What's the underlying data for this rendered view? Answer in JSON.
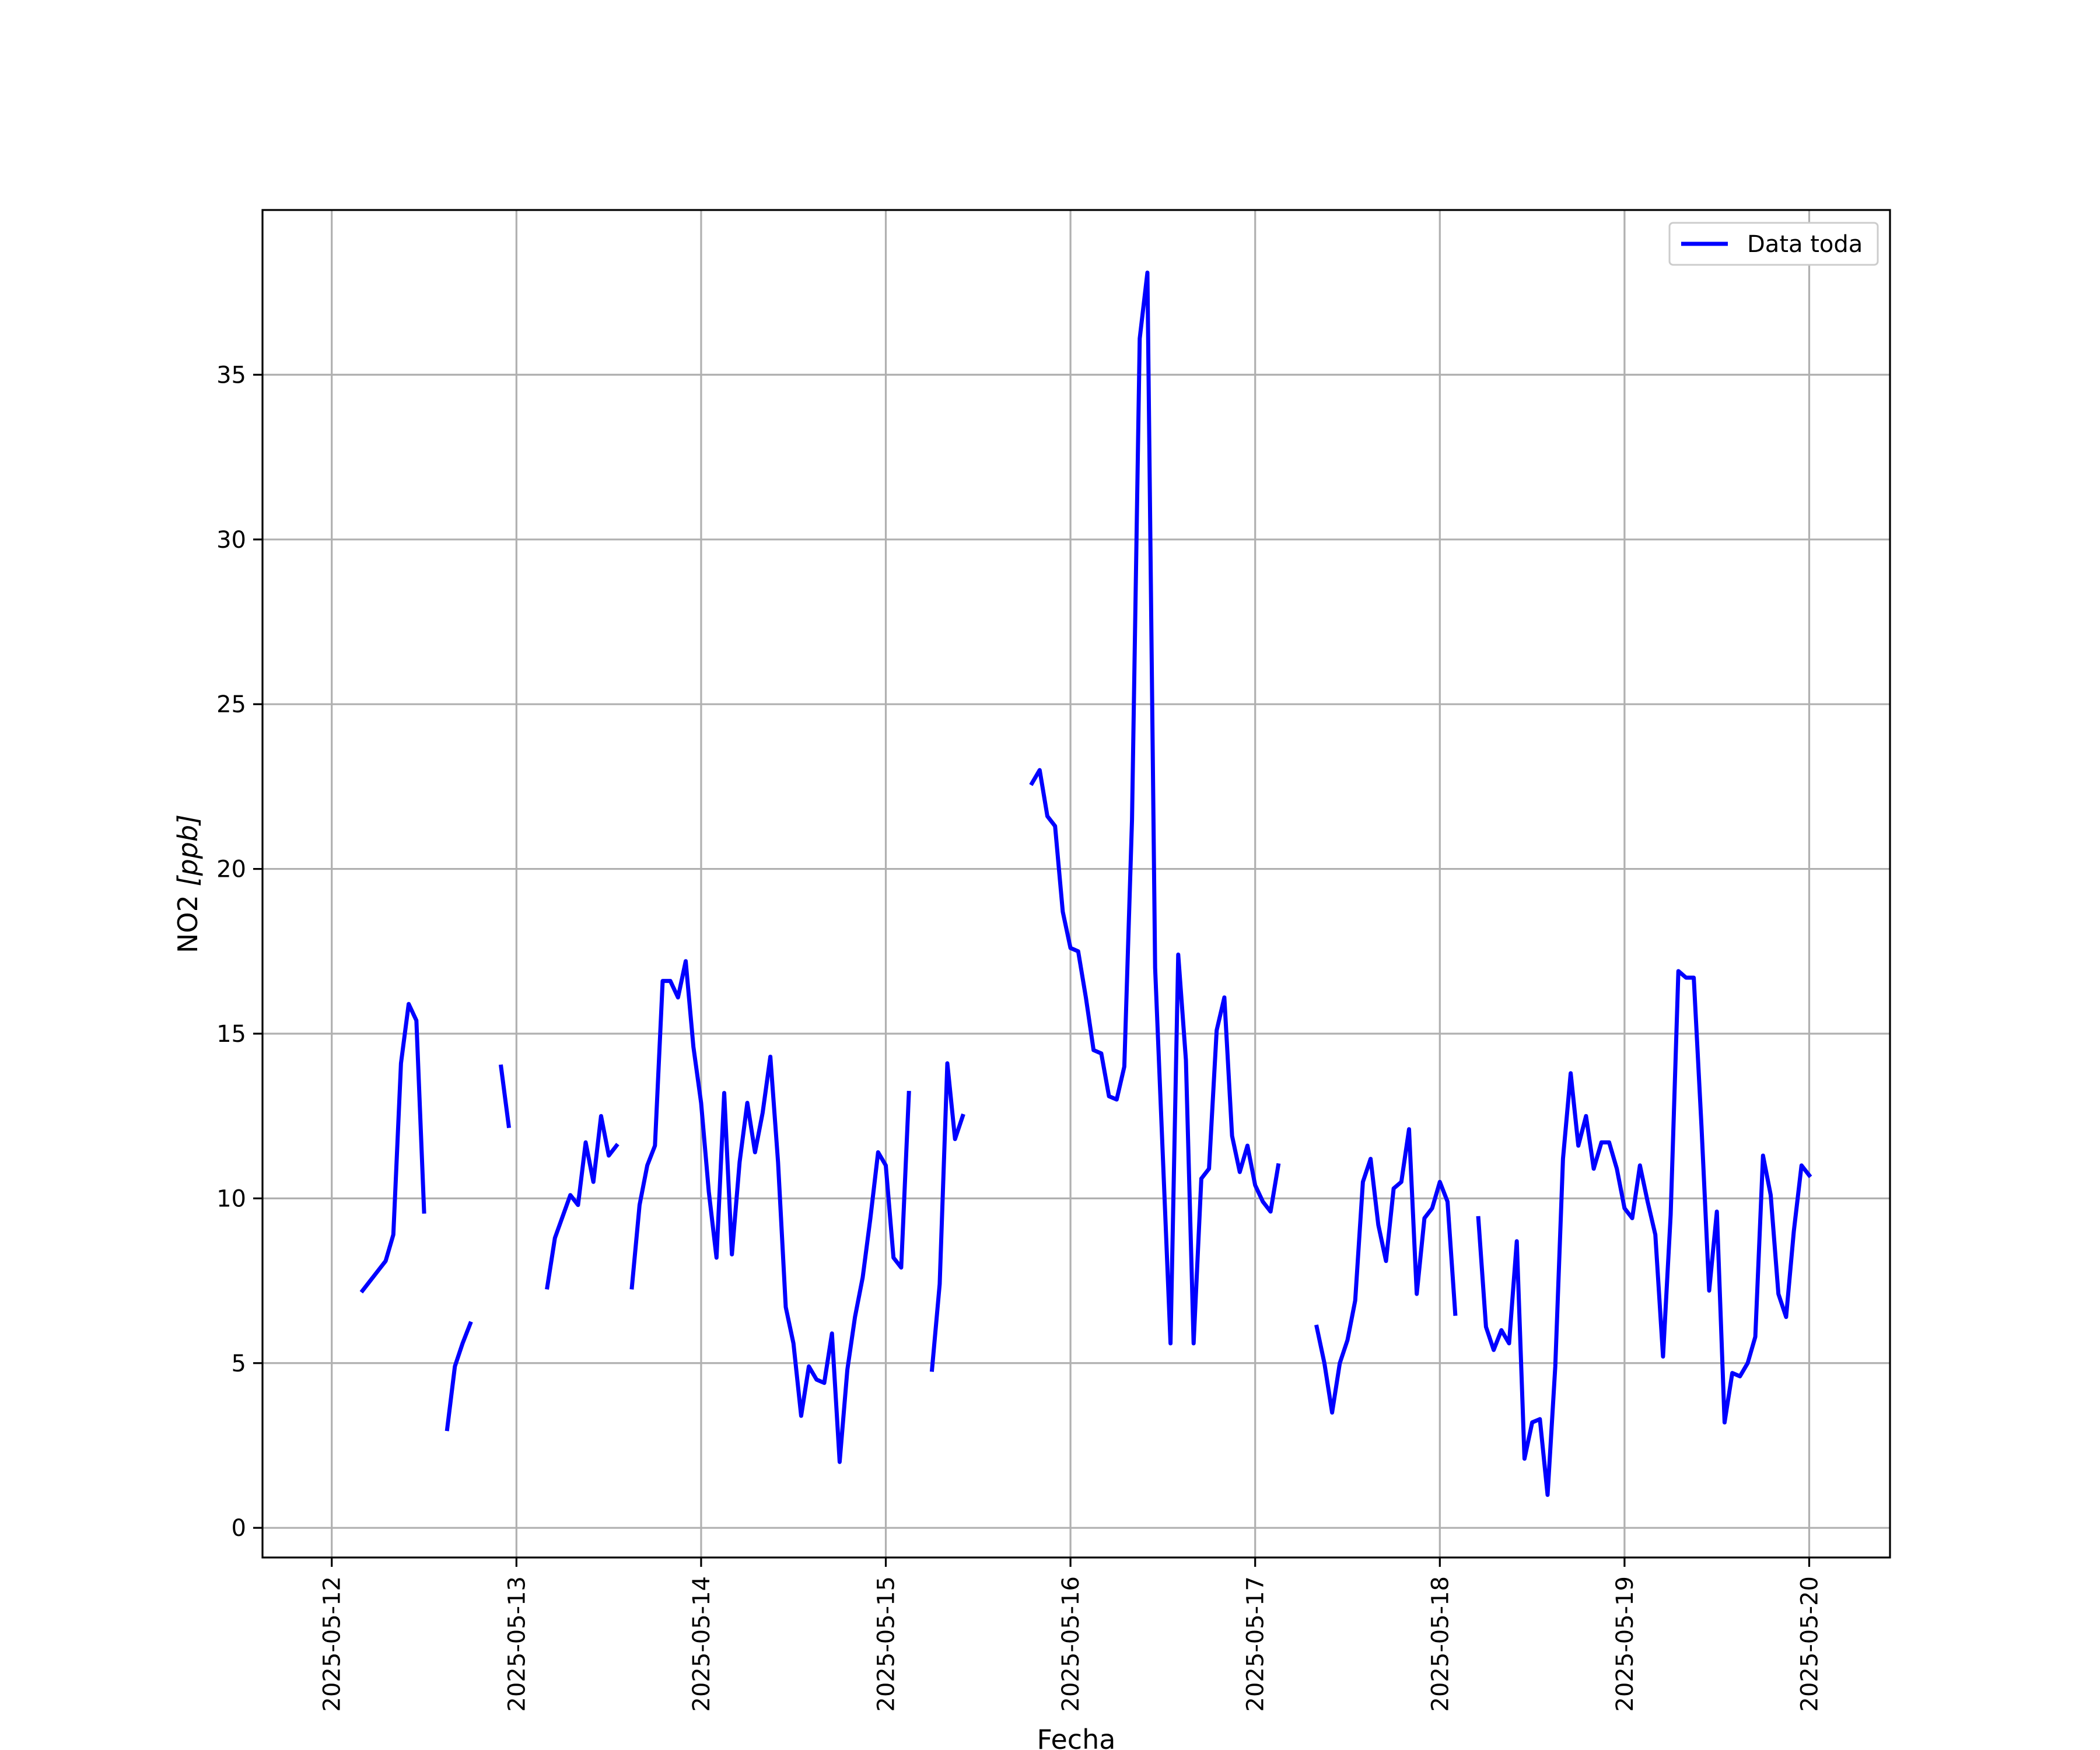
{
  "chart_data": {
    "type": "line",
    "title": "",
    "xlabel": "Fecha",
    "ylabel_text": "NO2 ",
    "ylabel_unit": "[ppb]",
    "x_ticks": [
      "2025-05-12",
      "2025-05-13",
      "2025-05-14",
      "2025-05-15",
      "2025-05-16",
      "2025-05-17",
      "2025-05-18",
      "2025-05-19",
      "2025-05-20"
    ],
    "y_ticks": [
      0,
      5,
      10,
      15,
      20,
      25,
      30,
      35
    ],
    "xlim": [
      "2025-05-11T15:00",
      "2025-05-20T10:30"
    ],
    "ylim": [
      -0.9,
      40.0
    ],
    "grid": true,
    "legend_position": "top-right",
    "colors": {
      "series": "#0000ff",
      "grid": "#b0b0b0",
      "axes": "#000000"
    },
    "series": [
      {
        "name": "Data toda",
        "segments": [
          [
            [
              "2025-05-12T04:00",
              7.2
            ],
            [
              "2025-05-12T06:00",
              7.8
            ],
            [
              "2025-05-12T07:00",
              8.1
            ],
            [
              "2025-05-12T08:00",
              8.9
            ],
            [
              "2025-05-12T09:00",
              14.1
            ],
            [
              "2025-05-12T10:00",
              15.9
            ],
            [
              "2025-05-12T11:00",
              15.4
            ],
            [
              "2025-05-12T12:00",
              9.6
            ]
          ],
          [
            [
              "2025-05-12T15:00",
              3.0
            ],
            [
              "2025-05-12T16:00",
              4.9
            ],
            [
              "2025-05-12T17:00",
              5.6
            ],
            [
              "2025-05-12T18:00",
              6.2
            ]
          ],
          [
            [
              "2025-05-12T22:00",
              14.0
            ],
            [
              "2025-05-12T23:00",
              12.2
            ]
          ],
          [
            [
              "2025-05-13T04:00",
              7.3
            ],
            [
              "2025-05-13T05:00",
              8.8
            ],
            [
              "2025-05-13T07:00",
              10.1
            ],
            [
              "2025-05-13T08:00",
              9.8
            ],
            [
              "2025-05-13T09:00",
              11.7
            ],
            [
              "2025-05-13T10:00",
              10.5
            ],
            [
              "2025-05-13T11:00",
              12.5
            ],
            [
              "2025-05-13T12:00",
              11.3
            ],
            [
              "2025-05-13T13:00",
              11.6
            ]
          ],
          [
            [
              "2025-05-13T15:00",
              7.3
            ],
            [
              "2025-05-13T16:00",
              9.8
            ],
            [
              "2025-05-13T17:00",
              11.0
            ],
            [
              "2025-05-13T18:00",
              11.6
            ],
            [
              "2025-05-13T19:00",
              16.6
            ],
            [
              "2025-05-13T20:00",
              16.6
            ],
            [
              "2025-05-13T21:00",
              16.1
            ],
            [
              "2025-05-13T22:00",
              17.2
            ],
            [
              "2025-05-13T23:00",
              14.6
            ],
            [
              "2025-05-14T00:00",
              12.9
            ],
            [
              "2025-05-14T01:00",
              10.2
            ],
            [
              "2025-05-14T02:00",
              8.2
            ],
            [
              "2025-05-14T03:00",
              13.2
            ],
            [
              "2025-05-14T04:00",
              8.3
            ],
            [
              "2025-05-14T05:00",
              11.1
            ],
            [
              "2025-05-14T06:00",
              12.9
            ],
            [
              "2025-05-14T07:00",
              11.4
            ],
            [
              "2025-05-14T08:00",
              12.6
            ],
            [
              "2025-05-14T09:00",
              14.3
            ],
            [
              "2025-05-14T10:00",
              11.1
            ],
            [
              "2025-05-14T11:00",
              6.7
            ],
            [
              "2025-05-14T12:00",
              5.6
            ],
            [
              "2025-05-14T13:00",
              3.4
            ],
            [
              "2025-05-14T14:00",
              4.9
            ],
            [
              "2025-05-14T15:00",
              4.5
            ],
            [
              "2025-05-14T16:00",
              4.4
            ],
            [
              "2025-05-14T17:00",
              5.9
            ],
            [
              "2025-05-14T18:00",
              2.0
            ],
            [
              "2025-05-14T19:00",
              4.8
            ],
            [
              "2025-05-14T20:00",
              6.4
            ],
            [
              "2025-05-14T21:00",
              7.6
            ],
            [
              "2025-05-14T22:00",
              9.4
            ],
            [
              "2025-05-14T23:00",
              11.4
            ],
            [
              "2025-05-15T00:00",
              11.0
            ],
            [
              "2025-05-15T01:00",
              8.2
            ],
            [
              "2025-05-15T02:00",
              7.9
            ],
            [
              "2025-05-15T03:00",
              13.2
            ]
          ],
          [
            [
              "2025-05-15T06:00",
              4.8
            ],
            [
              "2025-05-15T07:00",
              7.4
            ],
            [
              "2025-05-15T08:00",
              14.1
            ],
            [
              "2025-05-15T09:00",
              11.8
            ],
            [
              "2025-05-15T10:00",
              12.5
            ]
          ],
          [
            [
              "2025-05-15T19:00",
              22.6
            ],
            [
              "2025-05-15T20:00",
              23.0
            ],
            [
              "2025-05-15T21:00",
              21.6
            ],
            [
              "2025-05-15T22:00",
              21.3
            ],
            [
              "2025-05-15T23:00",
              18.7
            ],
            [
              "2025-05-16T00:00",
              17.6
            ],
            [
              "2025-05-16T01:00",
              17.5
            ],
            [
              "2025-05-16T02:00",
              16.1
            ],
            [
              "2025-05-16T03:00",
              14.5
            ],
            [
              "2025-05-16T04:00",
              14.4
            ],
            [
              "2025-05-16T05:00",
              13.1
            ],
            [
              "2025-05-16T06:00",
              13.0
            ],
            [
              "2025-05-16T07:00",
              14.0
            ],
            [
              "2025-05-16T08:00",
              21.5
            ],
            [
              "2025-05-16T09:00",
              36.1
            ],
            [
              "2025-05-16T10:00",
              38.1
            ],
            [
              "2025-05-16T11:00",
              17.0
            ],
            [
              "2025-05-16T13:00",
              5.6
            ],
            [
              "2025-05-16T14:00",
              17.4
            ],
            [
              "2025-05-16T15:00",
              14.2
            ],
            [
              "2025-05-16T16:00",
              5.6
            ],
            [
              "2025-05-16T17:00",
              10.6
            ],
            [
              "2025-05-16T18:00",
              10.9
            ],
            [
              "2025-05-16T19:00",
              15.1
            ],
            [
              "2025-05-16T20:00",
              16.1
            ],
            [
              "2025-05-16T21:00",
              11.9
            ],
            [
              "2025-05-16T22:00",
              10.8
            ],
            [
              "2025-05-16T23:00",
              11.6
            ],
            [
              "2025-05-17T00:00",
              10.4
            ],
            [
              "2025-05-17T01:00",
              9.9
            ],
            [
              "2025-05-17T02:00",
              9.6
            ],
            [
              "2025-05-17T03:00",
              11.0
            ]
          ],
          [
            [
              "2025-05-17T08:00",
              6.1
            ],
            [
              "2025-05-17T09:00",
              5.0
            ],
            [
              "2025-05-17T10:00",
              3.5
            ],
            [
              "2025-05-17T11:00",
              5.0
            ],
            [
              "2025-05-17T12:00",
              5.7
            ],
            [
              "2025-05-17T13:00",
              6.9
            ],
            [
              "2025-05-17T14:00",
              10.5
            ],
            [
              "2025-05-17T15:00",
              11.2
            ],
            [
              "2025-05-17T16:00",
              9.2
            ],
            [
              "2025-05-17T17:00",
              8.1
            ],
            [
              "2025-05-17T18:00",
              10.3
            ],
            [
              "2025-05-17T19:00",
              10.5
            ],
            [
              "2025-05-17T20:00",
              12.1
            ],
            [
              "2025-05-17T21:00",
              7.1
            ],
            [
              "2025-05-17T22:00",
              9.4
            ],
            [
              "2025-05-17T23:00",
              9.7
            ],
            [
              "2025-05-18T00:00",
              10.5
            ],
            [
              "2025-05-18T01:00",
              9.9
            ],
            [
              "2025-05-18T02:00",
              6.5
            ]
          ],
          [
            [
              "2025-05-18T05:00",
              9.4
            ],
            [
              "2025-05-18T06:00",
              6.1
            ],
            [
              "2025-05-18T07:00",
              5.4
            ],
            [
              "2025-05-18T08:00",
              6.0
            ],
            [
              "2025-05-18T09:00",
              5.6
            ],
            [
              "2025-05-18T10:00",
              8.7
            ],
            [
              "2025-05-18T11:00",
              2.1
            ],
            [
              "2025-05-18T12:00",
              3.2
            ],
            [
              "2025-05-18T13:00",
              3.3
            ],
            [
              "2025-05-18T14:00",
              1.0
            ],
            [
              "2025-05-18T15:00",
              4.9
            ],
            [
              "2025-05-18T16:00",
              11.2
            ],
            [
              "2025-05-18T17:00",
              13.8
            ],
            [
              "2025-05-18T18:00",
              11.6
            ],
            [
              "2025-05-18T19:00",
              12.5
            ],
            [
              "2025-05-18T20:00",
              10.9
            ],
            [
              "2025-05-18T21:00",
              11.7
            ],
            [
              "2025-05-18T22:00",
              11.7
            ],
            [
              "2025-05-18T23:00",
              10.9
            ],
            [
              "2025-05-19T00:00",
              9.7
            ],
            [
              "2025-05-19T01:00",
              9.4
            ],
            [
              "2025-05-19T02:00",
              11.0
            ],
            [
              "2025-05-19T03:00",
              9.9
            ],
            [
              "2025-05-19T04:00",
              8.9
            ],
            [
              "2025-05-19T05:00",
              5.2
            ],
            [
              "2025-05-19T06:00",
              9.5
            ],
            [
              "2025-05-19T07:00",
              16.9
            ],
            [
              "2025-05-19T08:00",
              16.7
            ],
            [
              "2025-05-19T09:00",
              16.7
            ],
            [
              "2025-05-19T10:00",
              12.2
            ],
            [
              "2025-05-19T11:00",
              7.2
            ],
            [
              "2025-05-19T12:00",
              9.6
            ],
            [
              "2025-05-19T13:00",
              3.2
            ],
            [
              "2025-05-19T14:00",
              4.7
            ],
            [
              "2025-05-19T15:00",
              4.6
            ],
            [
              "2025-05-19T16:00",
              5.0
            ],
            [
              "2025-05-19T17:00",
              5.8
            ],
            [
              "2025-05-19T18:00",
              11.3
            ],
            [
              "2025-05-19T19:00",
              10.1
            ],
            [
              "2025-05-19T20:00",
              7.1
            ],
            [
              "2025-05-19T21:00",
              6.4
            ],
            [
              "2025-05-19T22:00",
              9.0
            ],
            [
              "2025-05-19T23:00",
              11.0
            ],
            [
              "2025-05-20T00:00",
              10.7
            ]
          ]
        ]
      }
    ]
  }
}
